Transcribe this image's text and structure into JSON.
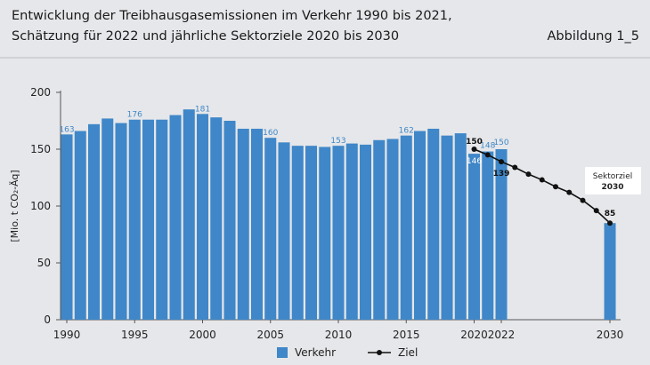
{
  "header": {
    "title_line1": "Entwicklung der Treibhausgasemissionen im Verkehr 1990 bis 2021,",
    "title_line2": "Schätzung für 2022 und jährliche Sektorziele 2020 bis 2030",
    "figure_label": "Abbildung 1_5"
  },
  "chart_data": {
    "type": "bar",
    "ylabel": "[Mio. t CO₂-Äq]",
    "ylim": [
      0,
      200
    ],
    "yticks": [
      0,
      50,
      100,
      150,
      200
    ],
    "xticks": [
      "1990",
      "1995",
      "2000",
      "2005",
      "2010",
      "2015",
      "2020",
      "2022",
      "2030"
    ],
    "colors": {
      "bar": "#3f87c8",
      "line": "#111111",
      "label_blue": "#3f87c8",
      "background": "#e6e7ea"
    },
    "series": [
      {
        "name": "Verkehr",
        "type": "bar",
        "x": [
          1990,
          1991,
          1992,
          1993,
          1994,
          1995,
          1996,
          1997,
          1998,
          1999,
          2000,
          2001,
          2002,
          2003,
          2004,
          2005,
          2006,
          2007,
          2008,
          2009,
          2010,
          2011,
          2012,
          2013,
          2014,
          2015,
          2016,
          2017,
          2018,
          2019,
          2020,
          2021,
          2022,
          2030
        ],
        "values": [
          163,
          166,
          172,
          177,
          173,
          176,
          176,
          176,
          180,
          185,
          181,
          178,
          175,
          168,
          168,
          160,
          156,
          153,
          153,
          152,
          153,
          155,
          154,
          158,
          159,
          162,
          166,
          168,
          162,
          164,
          146,
          148,
          150,
          85
        ]
      },
      {
        "name": "Ziel",
        "type": "line",
        "x": [
          2020,
          2021,
          2022,
          2023,
          2024,
          2025,
          2026,
          2027,
          2028,
          2029,
          2030
        ],
        "values": [
          150,
          145,
          139,
          134,
          128,
          123,
          117,
          112,
          105,
          96,
          85
        ]
      }
    ],
    "data_labels": [
      {
        "x": 1990,
        "value": "163",
        "series": "Verkehr"
      },
      {
        "x": 1995,
        "value": "176",
        "series": "Verkehr"
      },
      {
        "x": 2000,
        "value": "181",
        "series": "Verkehr"
      },
      {
        "x": 2005,
        "value": "160",
        "series": "Verkehr"
      },
      {
        "x": 2010,
        "value": "153",
        "series": "Verkehr"
      },
      {
        "x": 2015,
        "value": "162",
        "series": "Verkehr"
      },
      {
        "x": 2020,
        "value": "146",
        "series": "Verkehr"
      },
      {
        "x": 2021,
        "value": "148",
        "series": "Verkehr"
      },
      {
        "x": 2022,
        "value": "150",
        "series": "Verkehr"
      },
      {
        "x": 2020,
        "value": "150",
        "series": "Ziel"
      },
      {
        "x": 2022,
        "value": "139",
        "series": "Ziel"
      },
      {
        "x": 2030,
        "value": "85",
        "series": "Ziel"
      }
    ],
    "annotation": {
      "line1": "Sektorziel",
      "line2": "2030"
    },
    "legend": {
      "placement": "bottom",
      "items": [
        "Verkehr",
        "Ziel"
      ]
    },
    "grid": false
  }
}
